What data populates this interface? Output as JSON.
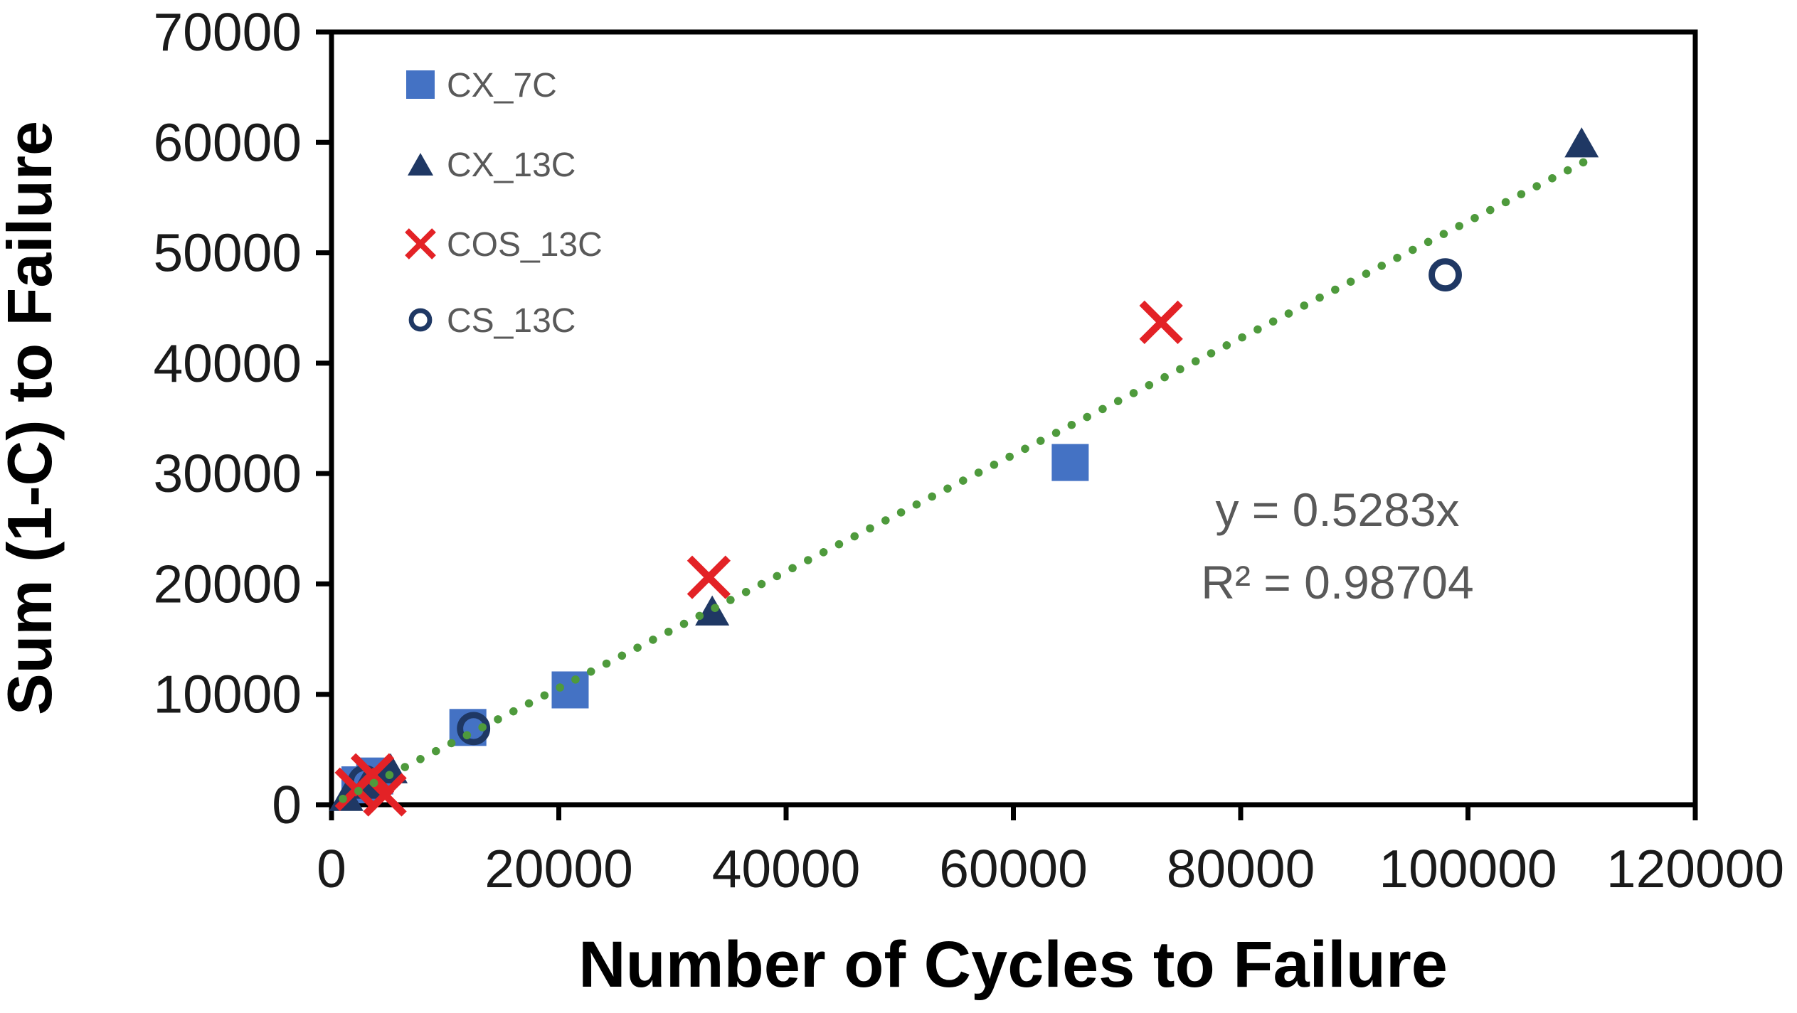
{
  "figure": {
    "background": "#ffffff"
  },
  "chart_data": {
    "type": "scatter",
    "title": "",
    "xlabel": "Number of Cycles to Failure",
    "ylabel": "Sum (1-C) to Failure",
    "xlim": [
      0,
      120000
    ],
    "ylim": [
      0,
      70000
    ],
    "x_ticks": [
      0,
      20000,
      40000,
      60000,
      80000,
      100000,
      120000
    ],
    "y_ticks": [
      0,
      10000,
      20000,
      30000,
      40000,
      50000,
      60000,
      70000
    ],
    "grid": false,
    "legend_position": "top-left-inside",
    "series": [
      {
        "name": "CX_7C",
        "marker": "square",
        "color": "#4472C4",
        "points": [
          [
            2500,
            1800
          ],
          [
            3800,
            2600
          ],
          [
            12000,
            7000
          ],
          [
            21000,
            10400
          ],
          [
            65000,
            31000
          ]
        ]
      },
      {
        "name": "CX_13C",
        "marker": "triangle",
        "color": "#1F3864",
        "points": [
          [
            1300,
            800
          ],
          [
            3000,
            1900
          ],
          [
            5200,
            3300
          ],
          [
            33500,
            17600
          ],
          [
            110000,
            60000
          ]
        ]
      },
      {
        "name": "COS_13C",
        "marker": "x",
        "color": "#E32226",
        "points": [
          [
            2200,
            1400
          ],
          [
            3600,
            2700
          ],
          [
            4700,
            900
          ],
          [
            33200,
            20600
          ],
          [
            73000,
            43700
          ]
        ]
      },
      {
        "name": "CS_13C",
        "marker": "circle-open",
        "color": "#1F3864",
        "points": [
          [
            2900,
            2100
          ],
          [
            12500,
            6900
          ],
          [
            98000,
            48000
          ]
        ]
      }
    ],
    "trendline": {
      "equation": "y = 0.5283x",
      "r_squared": "R² = 0.98704",
      "slope": 0.5283,
      "intercept": 0,
      "color": "#4E9A3C",
      "style": "dotted",
      "x_range": [
        1000,
        111500
      ]
    },
    "colors": {
      "axis": "#000000",
      "tick_label": "#1a1a1a",
      "legend_text": "#595959",
      "annotation_text": "#595959"
    }
  }
}
